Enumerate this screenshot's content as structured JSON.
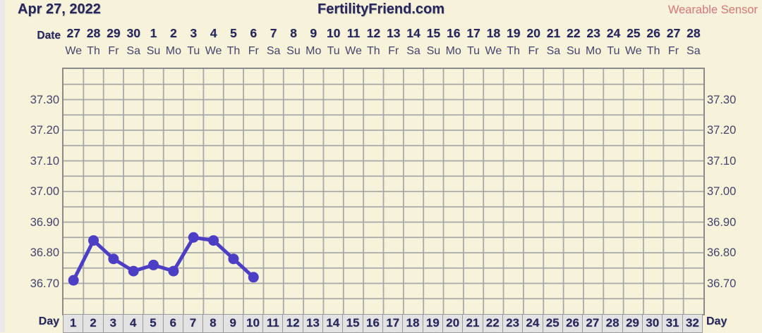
{
  "header": {
    "date_label": "Apr 27, 2022",
    "site_title": "FertilityFriend.com",
    "sensor_label": "Wearable Sensor"
  },
  "date_axis": {
    "label": "Date",
    "dates": [
      "27",
      "28",
      "29",
      "30",
      "1",
      "2",
      "3",
      "4",
      "5",
      "6",
      "7",
      "8",
      "9",
      "10",
      "11",
      "12",
      "13",
      "14",
      "15",
      "16",
      "17",
      "18",
      "19",
      "20",
      "21",
      "22",
      "23",
      "24",
      "25",
      "26",
      "27",
      "28"
    ],
    "weekdays": [
      "We",
      "Th",
      "Fr",
      "Sa",
      "Su",
      "Mo",
      "Tu",
      "We",
      "Th",
      "Fr",
      "Sa",
      "Su",
      "Mo",
      "Tu",
      "We",
      "Th",
      "Fr",
      "Sa",
      "Su",
      "Mo",
      "Tu",
      "We",
      "Th",
      "Fr",
      "Sa",
      "Su",
      "Mo",
      "Tu",
      "We",
      "Th",
      "Fr",
      "Sa"
    ]
  },
  "day_axis": {
    "label_left": "Day",
    "label_right": "Day",
    "days": [
      "1",
      "2",
      "3",
      "4",
      "5",
      "6",
      "7",
      "8",
      "9",
      "10",
      "11",
      "12",
      "13",
      "14",
      "15",
      "16",
      "17",
      "18",
      "19",
      "20",
      "21",
      "22",
      "23",
      "24",
      "25",
      "26",
      "27",
      "28",
      "29",
      "30",
      "31",
      "32"
    ]
  },
  "chart_data": {
    "type": "line",
    "title": "",
    "xlabel": "Day",
    "ylabel": "",
    "x": [
      1,
      2,
      3,
      4,
      5,
      6,
      7,
      8,
      9,
      10
    ],
    "values": [
      36.71,
      36.84,
      36.78,
      36.74,
      36.76,
      36.74,
      36.85,
      36.84,
      36.78,
      36.72
    ],
    "ylim": [
      36.6,
      37.4
    ],
    "y_tick_labels": [
      "37.30",
      "37.20",
      "37.10",
      "37.00",
      "36.90",
      "36.80",
      "36.70"
    ],
    "y_minor_step": 0.05,
    "columns": 32,
    "grid": true,
    "legend": "none",
    "series_color": "#4c3ec5"
  },
  "colors": {
    "background": "#f6f3da",
    "left_strip": "#eaeaea",
    "text_navy": "#26255c",
    "text_navy_light": "#45436f",
    "grid": "#a8a8a8",
    "chart_border": "#8b8b8b",
    "line": "#4c3ec5",
    "day_cell_bg": "#e3e3e3",
    "day_cell_border": "#9b9b9b",
    "sensor_text": "#d9747b"
  }
}
